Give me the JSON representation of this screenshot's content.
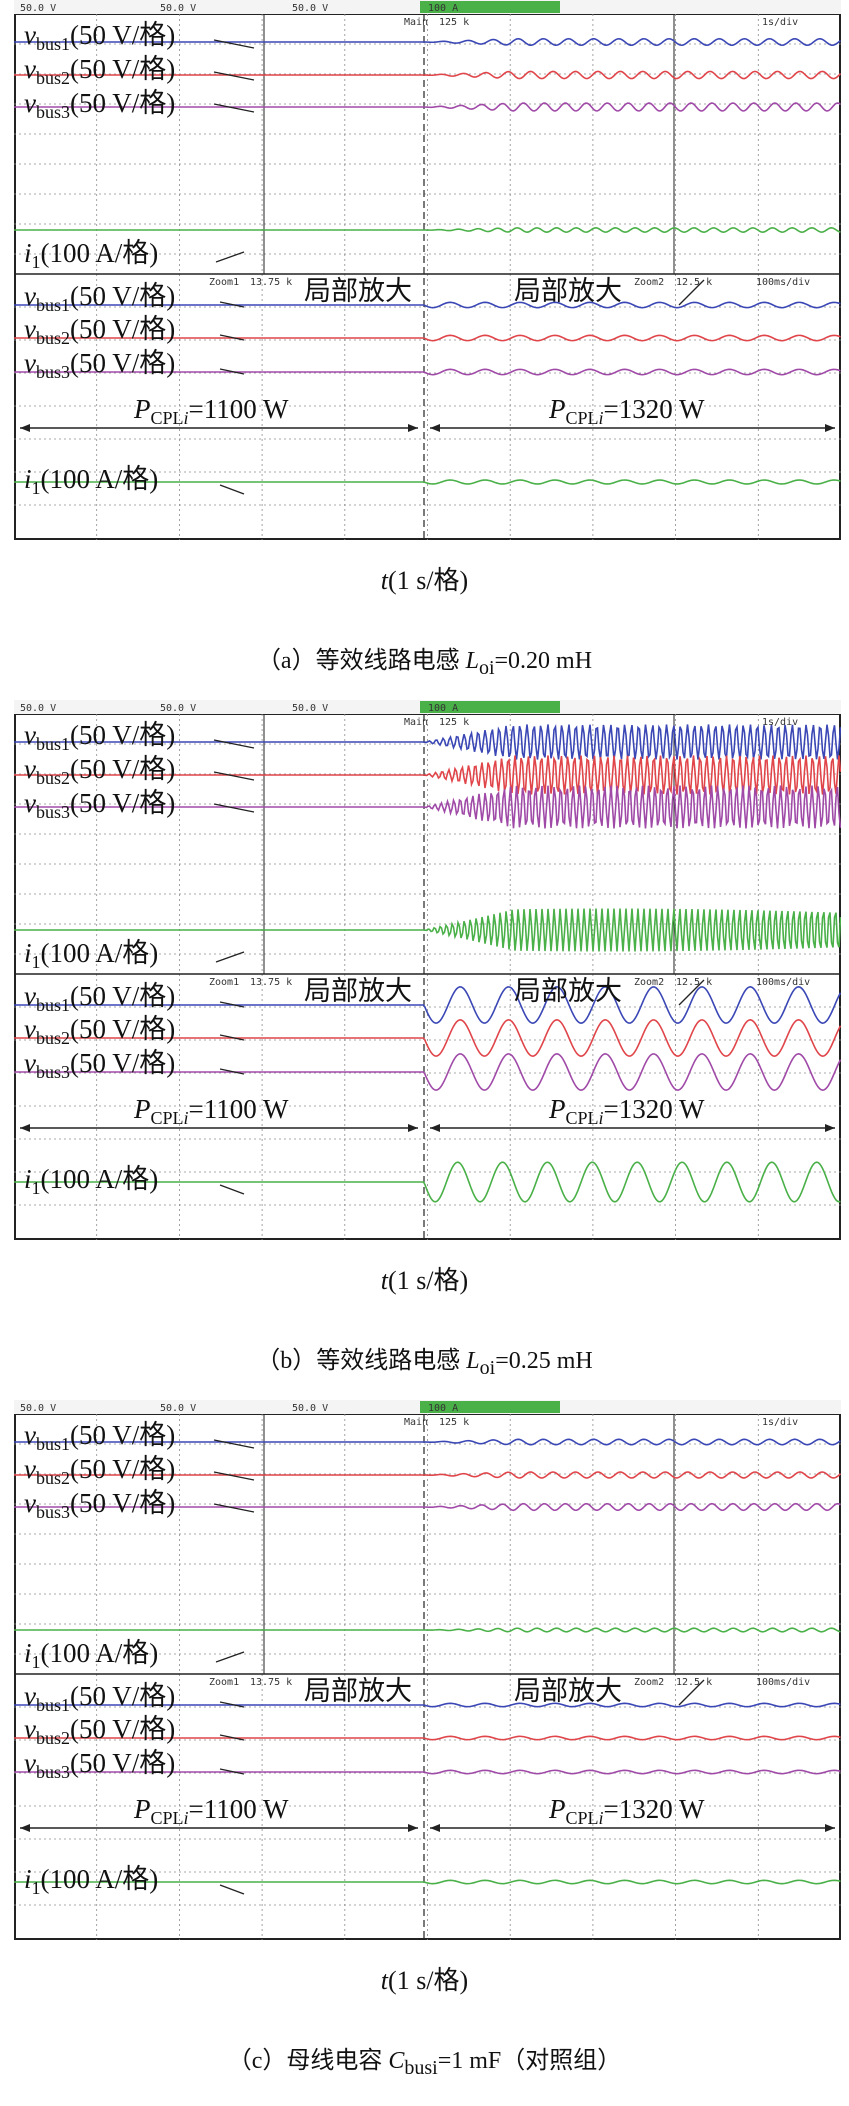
{
  "colors": {
    "v1": "#3a47b5",
    "v2": "#e0454a",
    "v3": "#a04aa8",
    "i1": "#4ab048",
    "grid": "#8c8c8c",
    "frame": "#222222"
  },
  "scope_text": {
    "ch1": "50.0 V",
    "ch2": "50.0 V",
    "ch3": "50.0 V",
    "ch4": "100 A",
    "main": "Main",
    "main_pts": "125 k",
    "main_div": "1s/div",
    "zoom1": "Zoom1",
    "zoom1_val": "13.75 k",
    "zoom2": "Zoom2",
    "zoom2_val": "12.5 k",
    "zoom_div": "100ms/div"
  },
  "labels": {
    "v": "v",
    "sub1": "bus1",
    "sub2": "bus2",
    "sub3": "bus3",
    "vscale": "(50 V/格)",
    "i": "i",
    "isub": "1",
    "iscale": "(100 A/格)",
    "zoom": "局部放大",
    "p": "P",
    "psub": "CPL",
    "psub_i": "i",
    "p_before": "=1100 W",
    "p_after": "=1320 W"
  },
  "xlabel": {
    "t": "t",
    "rest": "(1 s/格)"
  },
  "captions": [
    {
      "pre": "（a）等效线路电感 ",
      "sym": "L",
      "sub": "oi",
      "post": "=0.20 mH"
    },
    {
      "pre": "（b）等效线路电感 ",
      "sym": "L",
      "sub": "oi",
      "post": "=0.25 mH"
    },
    {
      "pre": "（c）母线电容 ",
      "sym": "C",
      "sub": "busi",
      "post": "=1 mF（对照组）"
    }
  ],
  "chart_data": [
    {
      "type": "line",
      "title": "",
      "xlabel": "t(1 s/格)",
      "params": {
        "L_oi_mH": 0.2
      },
      "load_step": {
        "before_W": 1100,
        "after_W": 1320
      },
      "oscillation_amplitude_divs": {
        "main": 0.12,
        "zoom_v": 0.08,
        "zoom_i": 0.06
      },
      "series": [
        {
          "name": "vbus1(50 V/格)"
        },
        {
          "name": "vbus2(50 V/格)"
        },
        {
          "name": "vbus3(50 V/格)"
        },
        {
          "name": "i1(100 A/格)"
        }
      ]
    },
    {
      "type": "line",
      "title": "",
      "xlabel": "t(1 s/格)",
      "params": {
        "L_oi_mH": 0.25
      },
      "load_step": {
        "before_W": 1100,
        "after_W": 1320
      },
      "oscillation_amplitude_divs": {
        "main": 0.65,
        "zoom_v": 0.55,
        "zoom_i": 0.6
      },
      "series": [
        {
          "name": "vbus1(50 V/格)"
        },
        {
          "name": "vbus2(50 V/格)"
        },
        {
          "name": "vbus3(50 V/格)"
        },
        {
          "name": "i1(100 A/格)"
        }
      ]
    },
    {
      "type": "line",
      "title": "",
      "xlabel": "t(1 s/格)",
      "params": {
        "C_busi_mF": 1
      },
      "load_step": {
        "before_W": 1100,
        "after_W": 1320
      },
      "oscillation_amplitude_divs": {
        "main": 0.1,
        "zoom_v": 0.05,
        "zoom_i": 0.05
      },
      "series": [
        {
          "name": "vbus1(50 V/格)"
        },
        {
          "name": "vbus2(50 V/格)"
        },
        {
          "name": "vbus3(50 V/格)"
        },
        {
          "name": "i1(100 A/格)"
        }
      ]
    }
  ]
}
